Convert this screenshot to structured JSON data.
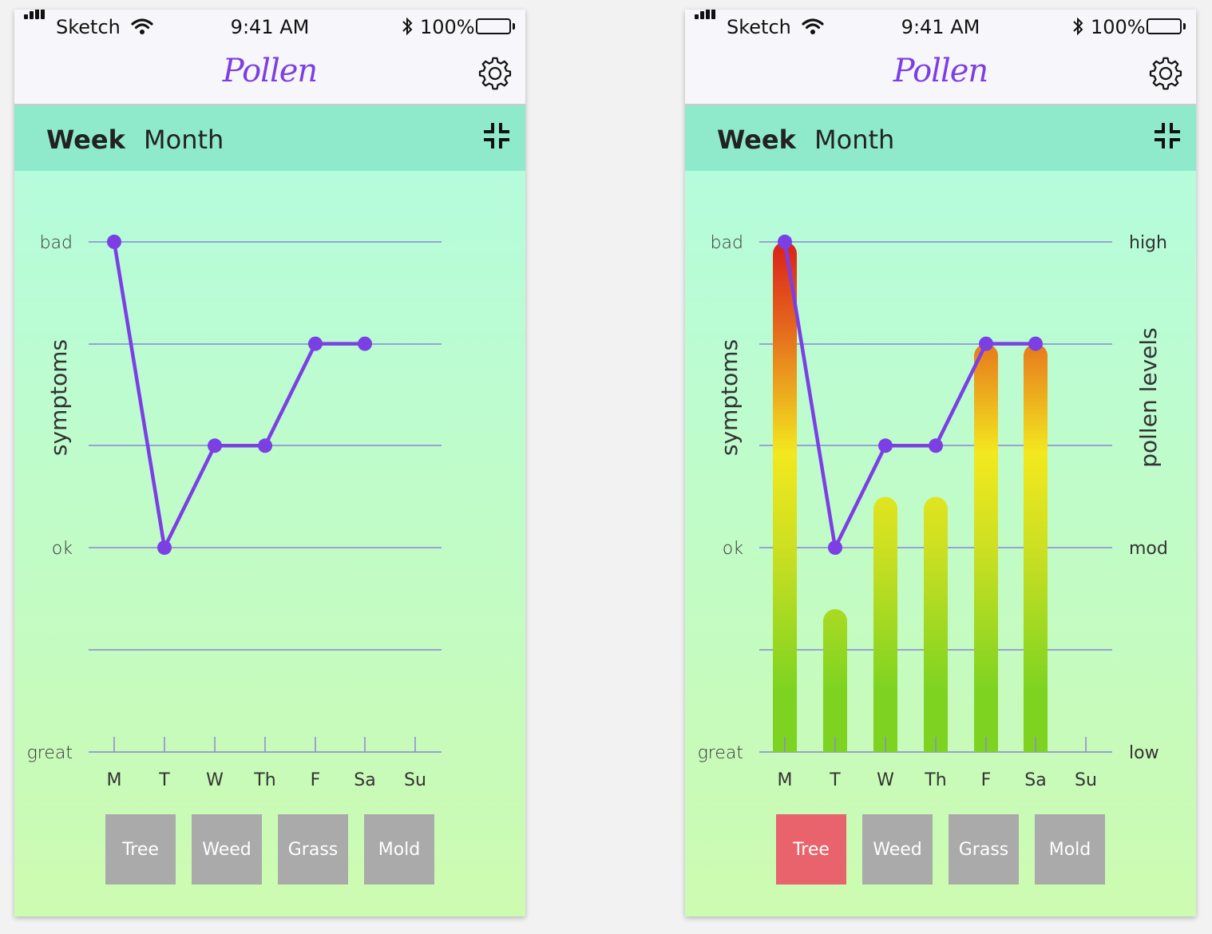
{
  "status_bar": {
    "carrier": "Sketch",
    "time": "9:41 AM",
    "battery": "100%"
  },
  "app": {
    "title": "Pollen"
  },
  "tabs": [
    {
      "label": "Week",
      "active": true
    },
    {
      "label": "Month",
      "active": false
    }
  ],
  "icons": {
    "settings": "gear-icon",
    "collapse": "collapse-icon",
    "wifi": "wifi-icon",
    "bluetooth": "bluetooth-icon"
  },
  "colors": {
    "accent": "#7b3fe4",
    "tab_bar": "#8eeacb",
    "filter_default": "#aaaaaa",
    "filter_selected": "#e8636b",
    "grid": "#8a86d6"
  },
  "screens": [
    {
      "symptom_axis": {
        "label": "symptoms",
        "ticks": [
          "bad",
          "ok",
          "great"
        ]
      },
      "filters": [
        {
          "label": "Tree",
          "selected": false
        },
        {
          "label": "Weed",
          "selected": false
        },
        {
          "label": "Grass",
          "selected": false
        },
        {
          "label": "Mold",
          "selected": false
        }
      ]
    },
    {
      "symptom_axis": {
        "label": "symptoms",
        "ticks": [
          "bad",
          "ok",
          "great"
        ]
      },
      "pollen_axis": {
        "label": "pollen levels",
        "ticks": [
          "high",
          "mod",
          "low"
        ]
      },
      "filters": [
        {
          "label": "Tree",
          "selected": true
        },
        {
          "label": "Weed",
          "selected": false
        },
        {
          "label": "Grass",
          "selected": false
        },
        {
          "label": "Mold",
          "selected": false
        }
      ]
    }
  ],
  "chart_data": [
    {
      "type": "line",
      "categories": [
        "M",
        "T",
        "W",
        "Th",
        "F",
        "Sa",
        "Su"
      ],
      "series": [
        {
          "values": [
            4,
            1,
            2,
            2,
            3,
            3,
            null
          ]
        }
      ],
      "ylim": [
        -1,
        4
      ],
      "y_tick_labels": {
        "4": "bad",
        "1": "ok",
        "-1": "great"
      },
      "grid": true
    },
    {
      "type": "bar",
      "categories": [
        "M",
        "T",
        "W",
        "Th",
        "F",
        "Sa",
        "Su"
      ],
      "series": [
        {
          "values": [
            4,
            1,
            2,
            2,
            3,
            3,
            null
          ]
        },
        {
          "values": [
            1.0,
            0.28,
            0.5,
            0.5,
            0.8,
            0.8,
            null
          ]
        }
      ],
      "ylim": [
        -1,
        4
      ],
      "y_tick_labels": {
        "4": "bad",
        "1": "ok",
        "-1": "great"
      },
      "y2_tick_labels": [
        "high",
        "mod",
        "low"
      ],
      "grid": true
    }
  ]
}
